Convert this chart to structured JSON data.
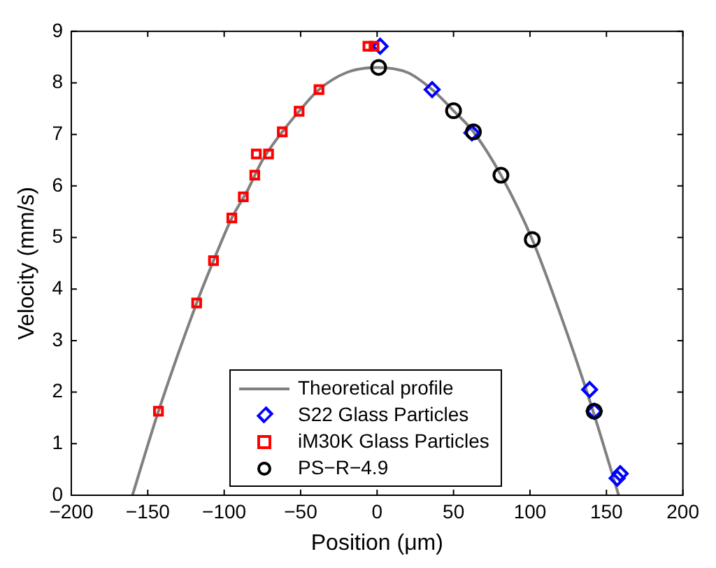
{
  "chart_data": {
    "type": "scatter",
    "xlabel": "Position (μm)",
    "ylabel": "Velocity (mm/s)",
    "xlim": [
      -200,
      200
    ],
    "xticks": [
      -200,
      -150,
      -100,
      -50,
      0,
      50,
      100,
      150,
      200
    ],
    "ylim": [
      0,
      9
    ],
    "yticks": [
      0,
      1,
      2,
      3,
      4,
      5,
      6,
      7,
      8,
      9
    ],
    "legend": "bottom",
    "series": [
      {
        "name": "Theoretical profile",
        "type": "line",
        "color": "#808080",
        "marker": "none",
        "line_style": "solid",
        "x": [
          -160,
          -143,
          -118,
          -107,
          -95,
          -85,
          -75,
          -62,
          -51,
          -38,
          -20,
          0,
          20,
          36,
          50,
          63,
          81,
          101.5,
          120,
          140,
          158
        ],
        "values": [
          0,
          1.63,
          3.73,
          4.55,
          5.38,
          5.9,
          6.5,
          7.05,
          7.45,
          7.87,
          8.2,
          8.3,
          8.2,
          7.87,
          7.46,
          7.05,
          6.21,
          4.96,
          3.5,
          1.75,
          0
        ]
      },
      {
        "name": "S22 Glass Particles",
        "color": "#0000ff",
        "marker": "diamond",
        "x": [
          2,
          36,
          62,
          139,
          142,
          157,
          159
        ],
        "values": [
          8.71,
          7.87,
          7.03,
          2.05,
          1.63,
          0.33,
          0.42
        ]
      },
      {
        "name": "iM30K Glass Particles",
        "color": "#ff0000",
        "marker": "square",
        "x": [
          -143,
          -118,
          -107,
          -95,
          -87.5,
          -80,
          -79,
          -71,
          -62,
          -51,
          -38,
          -6,
          -2
        ],
        "values": [
          1.63,
          3.73,
          4.55,
          5.38,
          5.79,
          6.21,
          6.62,
          6.62,
          7.05,
          7.45,
          7.87,
          8.71,
          8.71
        ]
      },
      {
        "name": "PS−R−4.9",
        "color": "#000000",
        "marker": "circle",
        "x": [
          1,
          50,
          63,
          81,
          101.5,
          142
        ],
        "values": [
          8.3,
          7.46,
          7.05,
          6.21,
          4.96,
          1.63
        ]
      }
    ]
  }
}
